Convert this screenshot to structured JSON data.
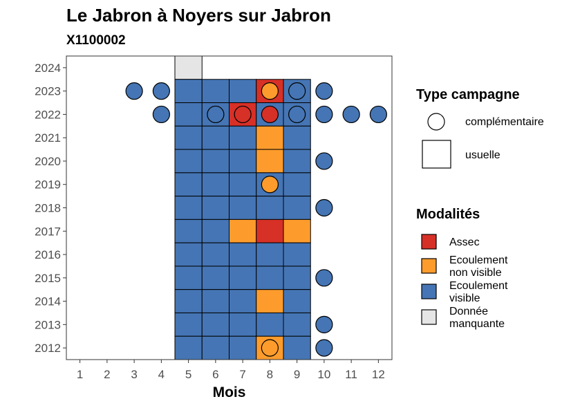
{
  "chart_data": {
    "type": "heatmap",
    "title": "Le Jabron à Noyers sur Jabron",
    "subtitle": "X1100002",
    "xlabel": "Mois",
    "ylabel": "",
    "x_ticks": [
      1,
      2,
      3,
      4,
      5,
      6,
      7,
      8,
      9,
      10,
      11,
      12
    ],
    "y_ticks": [
      2012,
      2013,
      2014,
      2015,
      2016,
      2017,
      2018,
      2019,
      2020,
      2021,
      2022,
      2023,
      2024
    ],
    "xlim": [
      0.5,
      12.5
    ],
    "ylim": [
      2011.5,
      2024.5
    ],
    "grid": false,
    "colors": {
      "Assec": "#d73027",
      "Ecoulement non visible": "#fd9c2c",
      "Ecoulement visible": "#4575b4",
      "Donnée manquante": "#e5e5e5"
    },
    "legend_type": {
      "title": "Type campagne",
      "items": [
        {
          "label": "complémentaire",
          "shape": "circle"
        },
        {
          "label": "usuelle",
          "shape": "square"
        }
      ]
    },
    "legend_modalites": {
      "title": "Modalités",
      "items": [
        {
          "label": "Assec",
          "lines": [
            "Assec"
          ],
          "key": "Assec"
        },
        {
          "label": "Ecoulement non visible",
          "lines": [
            "Ecoulement",
            "non visible"
          ],
          "key": "Ecoulement non visible"
        },
        {
          "label": "Ecoulement visible",
          "lines": [
            "Ecoulement",
            "visible"
          ],
          "key": "Ecoulement visible"
        },
        {
          "label": "Donnée manquante",
          "lines": [
            "Donnée",
            "manquante"
          ],
          "key": "Donnée manquante"
        }
      ]
    },
    "usuelle": [
      {
        "year": 2024,
        "month": 5,
        "value": "Donnée manquante"
      },
      {
        "year": 2023,
        "month": 5,
        "value": "Ecoulement visible"
      },
      {
        "year": 2023,
        "month": 6,
        "value": "Ecoulement visible"
      },
      {
        "year": 2023,
        "month": 7,
        "value": "Ecoulement visible"
      },
      {
        "year": 2023,
        "month": 8,
        "value": "Assec"
      },
      {
        "year": 2023,
        "month": 9,
        "value": "Ecoulement visible"
      },
      {
        "year": 2022,
        "month": 5,
        "value": "Ecoulement visible"
      },
      {
        "year": 2022,
        "month": 6,
        "value": "Ecoulement visible"
      },
      {
        "year": 2022,
        "month": 7,
        "value": "Assec"
      },
      {
        "year": 2022,
        "month": 8,
        "value": "Ecoulement visible"
      },
      {
        "year": 2022,
        "month": 9,
        "value": "Ecoulement visible"
      },
      {
        "year": 2021,
        "month": 5,
        "value": "Ecoulement visible"
      },
      {
        "year": 2021,
        "month": 6,
        "value": "Ecoulement visible"
      },
      {
        "year": 2021,
        "month": 7,
        "value": "Ecoulement visible"
      },
      {
        "year": 2021,
        "month": 8,
        "value": "Ecoulement non visible"
      },
      {
        "year": 2021,
        "month": 9,
        "value": "Ecoulement visible"
      },
      {
        "year": 2020,
        "month": 5,
        "value": "Ecoulement visible"
      },
      {
        "year": 2020,
        "month": 6,
        "value": "Ecoulement visible"
      },
      {
        "year": 2020,
        "month": 7,
        "value": "Ecoulement visible"
      },
      {
        "year": 2020,
        "month": 8,
        "value": "Ecoulement non visible"
      },
      {
        "year": 2020,
        "month": 9,
        "value": "Ecoulement visible"
      },
      {
        "year": 2019,
        "month": 5,
        "value": "Ecoulement visible"
      },
      {
        "year": 2019,
        "month": 6,
        "value": "Ecoulement visible"
      },
      {
        "year": 2019,
        "month": 7,
        "value": "Ecoulement visible"
      },
      {
        "year": 2019,
        "month": 8,
        "value": "Ecoulement visible"
      },
      {
        "year": 2019,
        "month": 9,
        "value": "Ecoulement visible"
      },
      {
        "year": 2018,
        "month": 5,
        "value": "Ecoulement visible"
      },
      {
        "year": 2018,
        "month": 6,
        "value": "Ecoulement visible"
      },
      {
        "year": 2018,
        "month": 7,
        "value": "Ecoulement visible"
      },
      {
        "year": 2018,
        "month": 8,
        "value": "Ecoulement visible"
      },
      {
        "year": 2018,
        "month": 9,
        "value": "Ecoulement visible"
      },
      {
        "year": 2017,
        "month": 5,
        "value": "Ecoulement visible"
      },
      {
        "year": 2017,
        "month": 6,
        "value": "Ecoulement visible"
      },
      {
        "year": 2017,
        "month": 7,
        "value": "Ecoulement non visible"
      },
      {
        "year": 2017,
        "month": 8,
        "value": "Assec"
      },
      {
        "year": 2017,
        "month": 9,
        "value": "Ecoulement non visible"
      },
      {
        "year": 2016,
        "month": 5,
        "value": "Ecoulement visible"
      },
      {
        "year": 2016,
        "month": 6,
        "value": "Ecoulement visible"
      },
      {
        "year": 2016,
        "month": 7,
        "value": "Ecoulement visible"
      },
      {
        "year": 2016,
        "month": 8,
        "value": "Ecoulement visible"
      },
      {
        "year": 2016,
        "month": 9,
        "value": "Ecoulement visible"
      },
      {
        "year": 2015,
        "month": 5,
        "value": "Ecoulement visible"
      },
      {
        "year": 2015,
        "month": 6,
        "value": "Ecoulement visible"
      },
      {
        "year": 2015,
        "month": 7,
        "value": "Ecoulement visible"
      },
      {
        "year": 2015,
        "month": 8,
        "value": "Ecoulement visible"
      },
      {
        "year": 2015,
        "month": 9,
        "value": "Ecoulement visible"
      },
      {
        "year": 2014,
        "month": 5,
        "value": "Ecoulement visible"
      },
      {
        "year": 2014,
        "month": 6,
        "value": "Ecoulement visible"
      },
      {
        "year": 2014,
        "month": 7,
        "value": "Ecoulement visible"
      },
      {
        "year": 2014,
        "month": 8,
        "value": "Ecoulement non visible"
      },
      {
        "year": 2014,
        "month": 9,
        "value": "Ecoulement visible"
      },
      {
        "year": 2013,
        "month": 5,
        "value": "Ecoulement visible"
      },
      {
        "year": 2013,
        "month": 6,
        "value": "Ecoulement visible"
      },
      {
        "year": 2013,
        "month": 7,
        "value": "Ecoulement visible"
      },
      {
        "year": 2013,
        "month": 8,
        "value": "Ecoulement visible"
      },
      {
        "year": 2013,
        "month": 9,
        "value": "Ecoulement visible"
      },
      {
        "year": 2012,
        "month": 5,
        "value": "Ecoulement visible"
      },
      {
        "year": 2012,
        "month": 6,
        "value": "Ecoulement visible"
      },
      {
        "year": 2012,
        "month": 7,
        "value": "Ecoulement visible"
      },
      {
        "year": 2012,
        "month": 8,
        "value": "Ecoulement non visible"
      },
      {
        "year": 2012,
        "month": 9,
        "value": "Ecoulement visible"
      }
    ],
    "complementaire": [
      {
        "year": 2023,
        "month": 3,
        "value": "Ecoulement visible"
      },
      {
        "year": 2023,
        "month": 4,
        "value": "Ecoulement visible"
      },
      {
        "year": 2023,
        "month": 8,
        "value": "Ecoulement non visible"
      },
      {
        "year": 2023,
        "month": 9,
        "value": "Ecoulement visible"
      },
      {
        "year": 2023,
        "month": 10,
        "value": "Ecoulement visible"
      },
      {
        "year": 2022,
        "month": 4,
        "value": "Ecoulement visible"
      },
      {
        "year": 2022,
        "month": 6,
        "value": "Ecoulement visible"
      },
      {
        "year": 2022,
        "month": 7,
        "value": "Assec"
      },
      {
        "year": 2022,
        "month": 8,
        "value": "Assec"
      },
      {
        "year": 2022,
        "month": 9,
        "value": "Ecoulement visible"
      },
      {
        "year": 2022,
        "month": 10,
        "value": "Ecoulement visible"
      },
      {
        "year": 2022,
        "month": 11,
        "value": "Ecoulement visible"
      },
      {
        "year": 2022,
        "month": 12,
        "value": "Ecoulement visible"
      },
      {
        "year": 2020,
        "month": 10,
        "value": "Ecoulement visible"
      },
      {
        "year": 2019,
        "month": 8,
        "value": "Ecoulement non visible"
      },
      {
        "year": 2018,
        "month": 10,
        "value": "Ecoulement visible"
      },
      {
        "year": 2015,
        "month": 10,
        "value": "Ecoulement visible"
      },
      {
        "year": 2013,
        "month": 10,
        "value": "Ecoulement visible"
      },
      {
        "year": 2012,
        "month": 8,
        "value": "Ecoulement non visible"
      },
      {
        "year": 2012,
        "month": 10,
        "value": "Ecoulement visible"
      }
    ]
  }
}
